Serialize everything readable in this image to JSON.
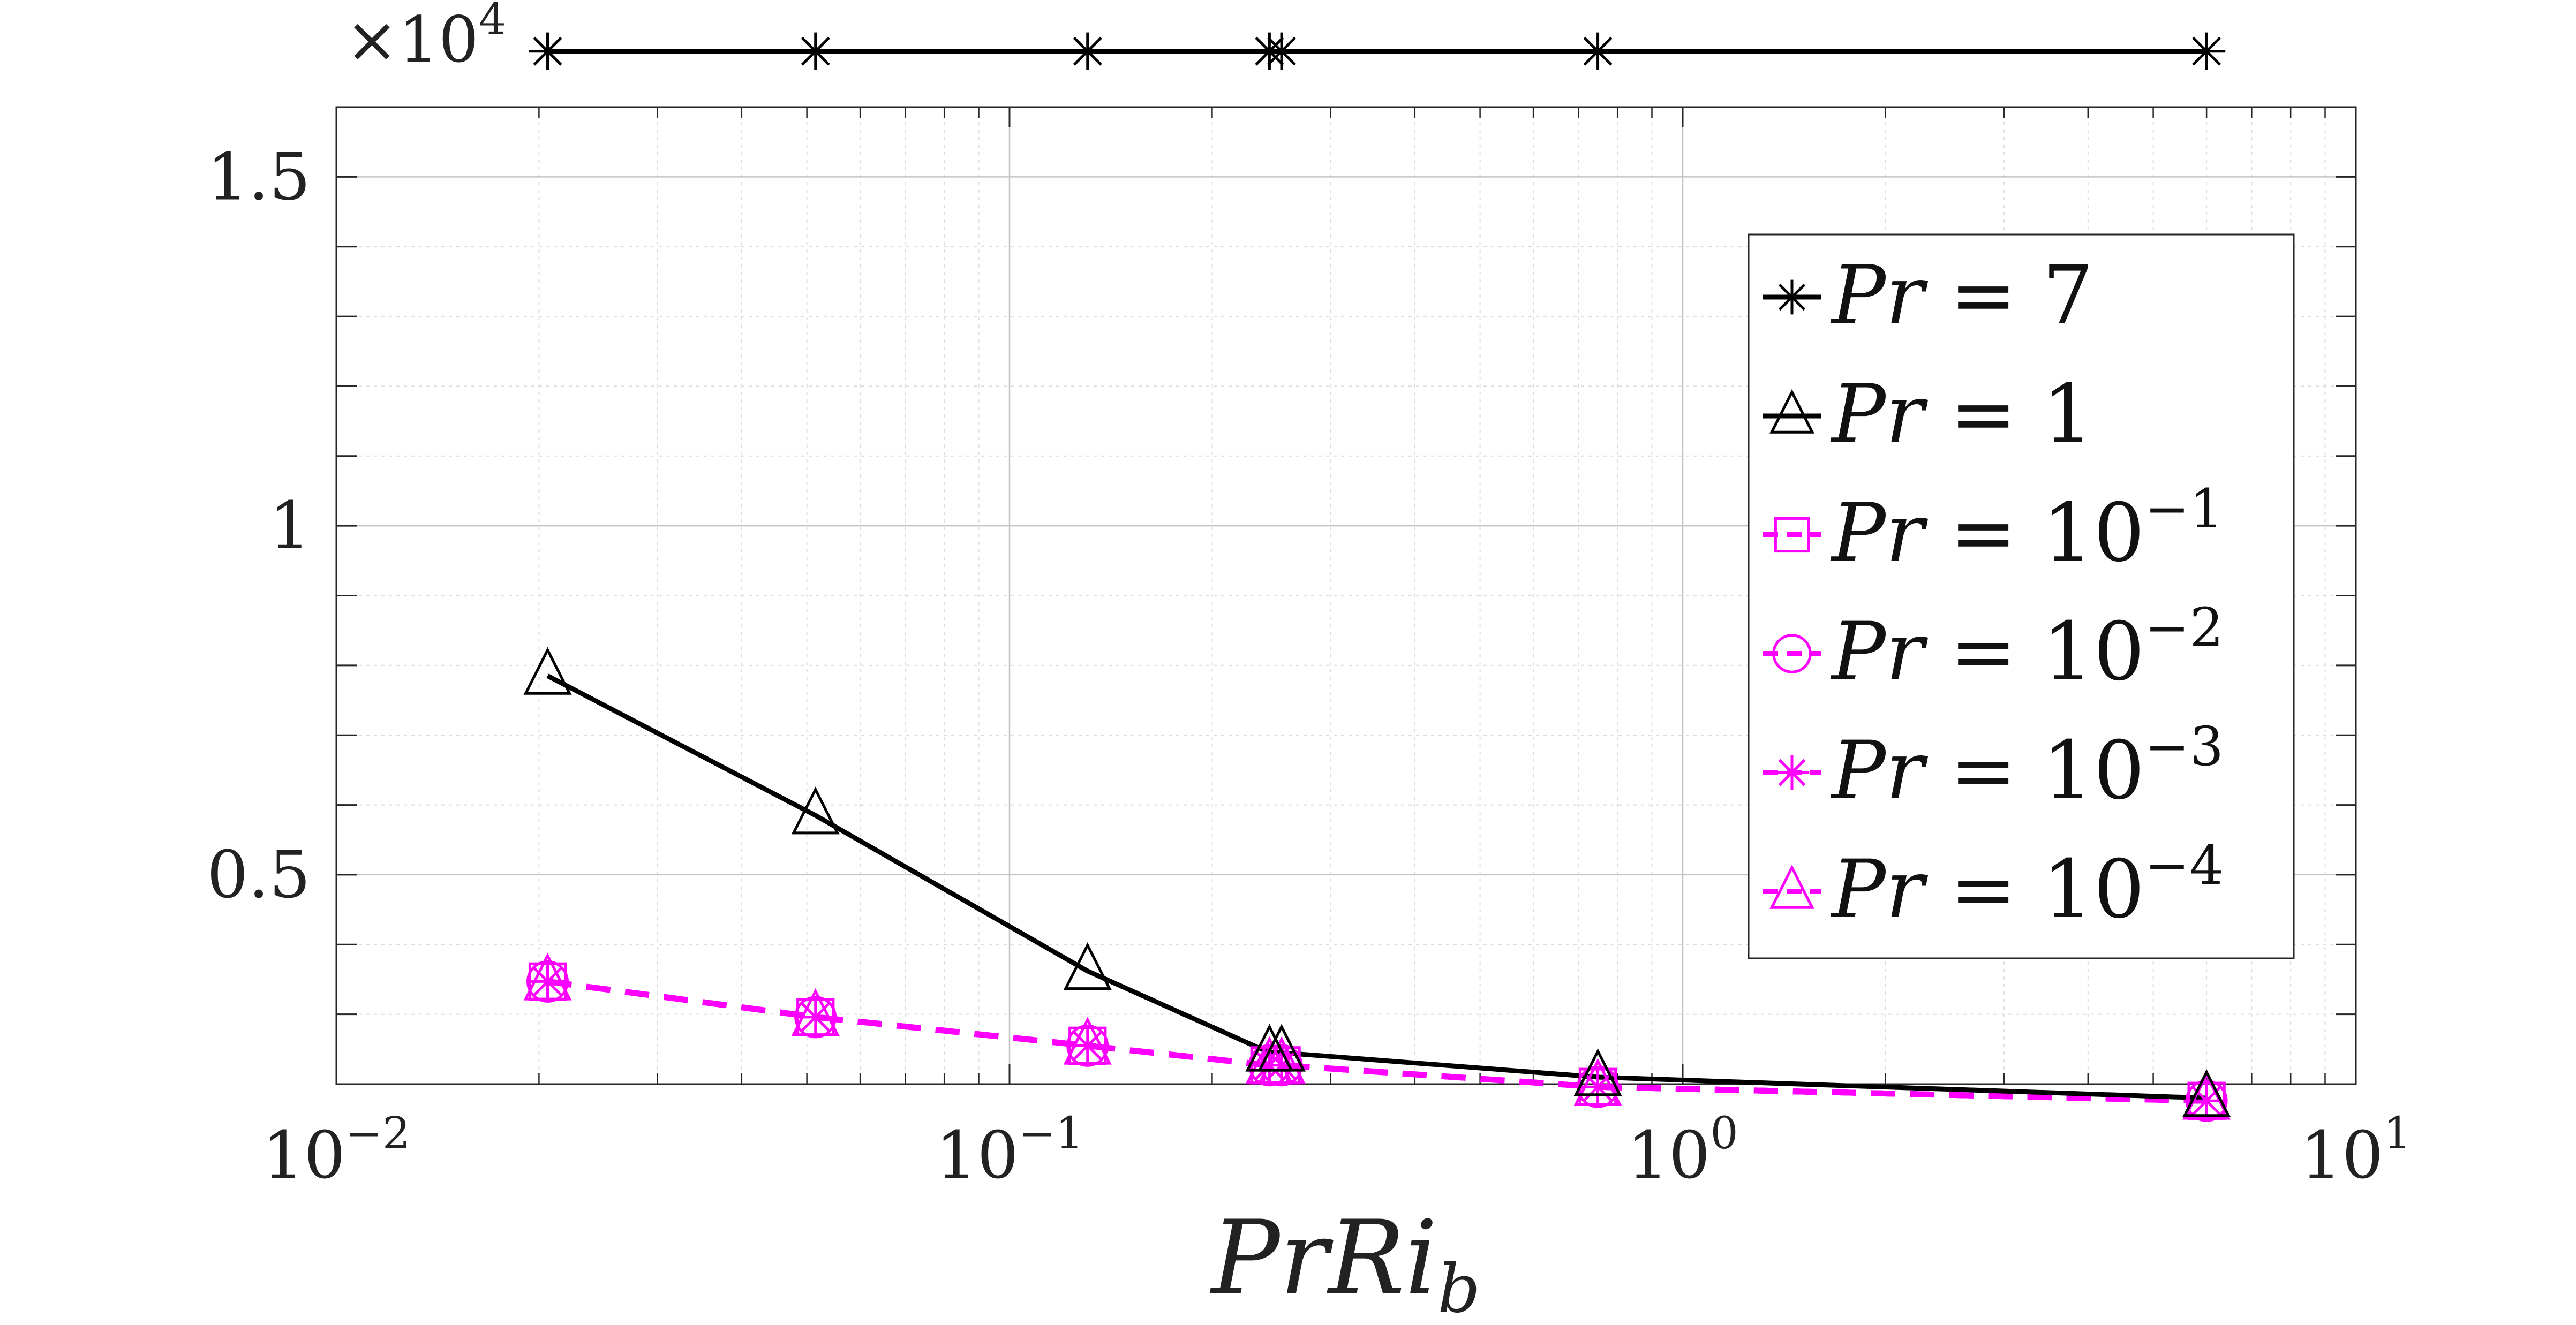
{
  "chart_data": {
    "type": "line",
    "x_scale": "log",
    "y_scale": "linear",
    "xlim": [
      0.01,
      10
    ],
    "ylim": [
      2000,
      16000
    ],
    "y_multiplier_label": "×10^4",
    "x_ticks": [
      {
        "value": 0.01,
        "base": "10",
        "exp": "−2"
      },
      {
        "value": 0.1,
        "base": "10",
        "exp": "−1"
      },
      {
        "value": 1,
        "base": "10",
        "exp": "0"
      },
      {
        "value": 10,
        "base": "10",
        "exp": "1"
      }
    ],
    "y_ticks": [
      {
        "value": 5000,
        "label": "0.5"
      },
      {
        "value": 10000,
        "label": "1"
      },
      {
        "value": 15000,
        "label": "1.5"
      }
    ],
    "xlabel": "PrRi_b",
    "xlabel_main": "PrRi",
    "xlabel_sub": "b",
    "ylabel": "",
    "grid": true,
    "legend_position": "right",
    "series": [
      {
        "name": "Pr = 7",
        "legend_main": "Pr = 7",
        "legend_exp": "",
        "color": "#000000",
        "dash": "solid",
        "marker": "asterisk",
        "x": [
          0.0206,
          0.0515,
          0.1306,
          0.2433,
          0.2536,
          0.7481,
          6.0
        ],
        "y": [
          16800,
          16800,
          16800,
          16800,
          16800,
          16800,
          16800
        ]
      },
      {
        "name": "Pr = 1",
        "legend_main": "Pr = 1",
        "legend_exp": "",
        "color": "#000000",
        "dash": "solid",
        "marker": "triangle",
        "x": [
          0.0206,
          0.0515,
          0.1306,
          0.2433,
          0.2536,
          0.7481,
          6.0
        ],
        "y": [
          7850,
          5850,
          3620,
          2450,
          2450,
          2100,
          1800
        ]
      },
      {
        "name": "Pr = 10^-1",
        "legend_main": "Pr = 10",
        "legend_exp": "−1",
        "color": "#ff00ff",
        "dash": "dashed",
        "marker": "square",
        "x": [
          0.0206,
          0.0515,
          0.1306,
          0.2433,
          0.2536,
          0.7481,
          6.0
        ],
        "y": [
          3470,
          2960,
          2550,
          2270,
          2270,
          1960,
          1760
        ]
      },
      {
        "name": "Pr = 10^-2",
        "legend_main": "Pr = 10",
        "legend_exp": "−2",
        "color": "#ff00ff",
        "dash": "dashed",
        "marker": "circle",
        "x": [
          0.0206,
          0.0515,
          0.1306,
          0.2433,
          0.2536,
          0.7481,
          6.0
        ],
        "y": [
          3470,
          2960,
          2550,
          2270,
          2270,
          1960,
          1760
        ]
      },
      {
        "name": "Pr = 10^-3",
        "legend_main": "Pr = 10",
        "legend_exp": "−3",
        "color": "#ff00ff",
        "dash": "dashed",
        "marker": "asterisk",
        "x": [
          0.0206,
          0.0515,
          0.1306,
          0.2433,
          0.2536,
          0.7481,
          6.0
        ],
        "y": [
          3470,
          2960,
          2550,
          2270,
          2270,
          1960,
          1760
        ]
      },
      {
        "name": "Pr = 10^-4",
        "legend_main": "Pr = 10",
        "legend_exp": "−4",
        "color": "#ff00ff",
        "dash": "dashed",
        "marker": "triangle",
        "x": [
          0.0206,
          0.0515,
          0.1306,
          0.2433,
          0.2536,
          0.7481,
          6.0
        ],
        "y": [
          3470,
          2960,
          2550,
          2270,
          2270,
          1960,
          1760
        ]
      }
    ]
  }
}
